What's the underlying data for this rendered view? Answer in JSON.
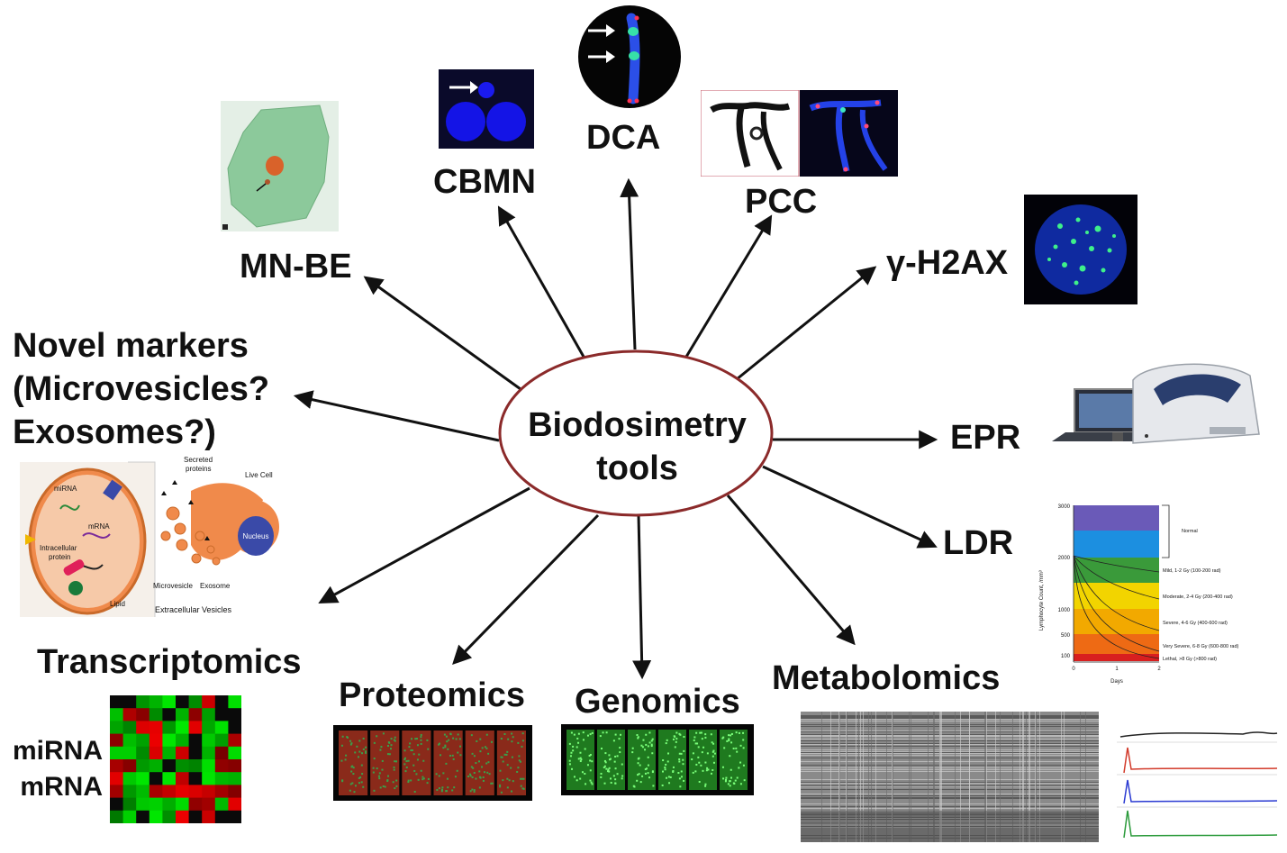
{
  "center": {
    "line1": "Biodosimetry",
    "line2": "tools"
  },
  "labels": {
    "mnbe": "MN-BE",
    "cbmn": "CBMN",
    "dca": "DCA",
    "pcc": "PCC",
    "h2ax": "γ-H2AX",
    "epr": "EPR",
    "ldr": "LDR",
    "metabolomics": "Metabolomics",
    "genomics": "Genomics",
    "proteomics": "Proteomics",
    "transcriptomics": "Transcriptomics",
    "novel1": "Novel markers",
    "novel2": "(Microvesicles?",
    "novel3": "Exosomes?)"
  },
  "transcriptomics_rows": {
    "mirna": "miRNA",
    "mrna": "mRNA"
  },
  "vesicle_figure": {
    "secreted": "Secreted",
    "proteins": "proteins",
    "live_cell": "Live Cell",
    "nucleus": "Nucleus",
    "mirna": "miRNA",
    "mrna": "mRNA",
    "intracellular": "Intracellular",
    "protein": "protein",
    "lipid": "Lipid",
    "microvesicle": "Microvesicle",
    "exosome": "Exosome",
    "caption": "Extracellular Vesicles"
  },
  "ldr_chart": {
    "ylabel": "Lymphocyte Count, /mm³",
    "xlabel": "Days",
    "y_ticks": [
      "3000",
      "2000",
      "1000",
      "500",
      "100"
    ],
    "x_ticks": [
      "0",
      "1",
      "2"
    ],
    "normal": "Normal",
    "bands": [
      {
        "label": "Mild, 1-2 Gy (100-200 rad)",
        "color": "#3a9a3a"
      },
      {
        "label": "Moderate, 2-4 Gy (200-400 rad)",
        "color": "#f2d400"
      },
      {
        "label": "Severe, 4-6 Gy (400-600 rad)",
        "color": "#f2a900"
      },
      {
        "label": "Very Severe, 6-8 Gy (600-800 rad)",
        "color": "#ee6a14"
      },
      {
        "label": "Lethal, >8 Gy (>800 rad)",
        "color": "#d81f1f"
      }
    ]
  },
  "colors": {
    "ellipse_stroke": "#8b2a2a",
    "arrow": "#111111",
    "fluor_blue": "#1414e6",
    "cell_green": "#8cc99b",
    "vesicle_orange": "#f08a4b"
  }
}
